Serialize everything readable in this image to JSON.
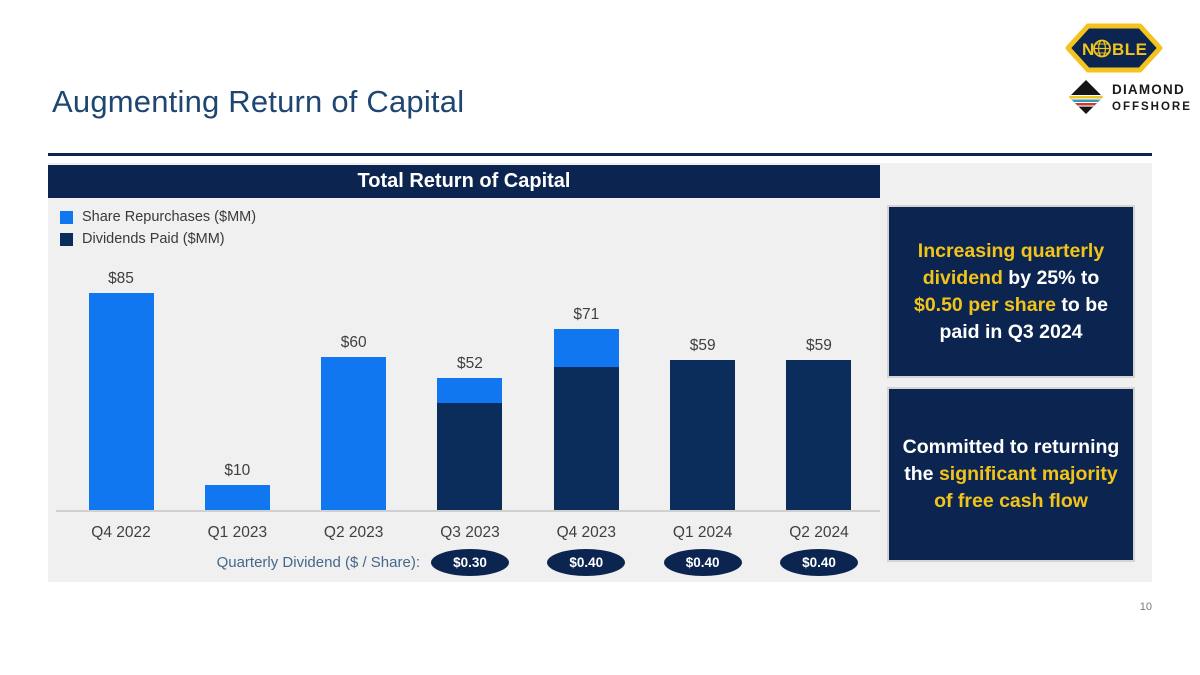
{
  "slide": {
    "title": "Augmenting Return of Capital",
    "page_number": "10"
  },
  "logos": {
    "noble_n": "N",
    "noble_ble": "BLE",
    "diamond_line1": "DIAMOND",
    "diamond_line2": "OFFSHORE"
  },
  "chart": {
    "header": "Total Return of Capital",
    "legend": [
      {
        "label": "Share Repurchases ($MM)",
        "color": "#1177F0"
      },
      {
        "label": "Dividends Paid ($MM)",
        "color": "#0B2D5B"
      }
    ],
    "dividend_row_label": "Quarterly Dividend ($ / Share):"
  },
  "chart_data": {
    "type": "bar",
    "stacked": true,
    "title": "Total Return of Capital",
    "categories": [
      "Q4 2022",
      "Q1 2023",
      "Q2 2023",
      "Q3 2023",
      "Q4 2023",
      "Q1 2024",
      "Q2 2024"
    ],
    "series": [
      {
        "name": "Dividends Paid ($MM)",
        "color": "#0B2D5B",
        "values": [
          0,
          0,
          0,
          42,
          56,
          59,
          59
        ]
      },
      {
        "name": "Share Repurchases ($MM)",
        "color": "#1177F0",
        "values": [
          85,
          10,
          60,
          10,
          15,
          0,
          0
        ]
      }
    ],
    "totals": [
      85,
      10,
      60,
      52,
      71,
      59,
      59
    ],
    "total_labels": [
      "$85",
      "$10",
      "$60",
      "$52",
      "$71",
      "$59",
      "$59"
    ],
    "dividends_per_share": [
      "",
      "",
      "",
      "$0.30",
      "$0.40",
      "$0.40",
      "$0.40"
    ],
    "xlabel": "",
    "ylabel": "",
    "ylim": [
      0,
      95
    ],
    "grid": false,
    "legend_position": "top-left"
  },
  "callouts": [
    {
      "segments": [
        {
          "text": "Increasing quarterly dividend ",
          "highlight": true
        },
        {
          "text": "by 25% to ",
          "highlight": false
        },
        {
          "text": "$0.50 per share",
          "highlight": true
        },
        {
          "text": " to be paid in Q3 2024",
          "highlight": false
        }
      ]
    },
    {
      "segments": [
        {
          "text": "Committed to returning the ",
          "highlight": false
        },
        {
          "text": "significant majority of free cash flow",
          "highlight": true
        }
      ]
    }
  ],
  "colors": {
    "accent_yellow": "#F2C319",
    "navy": "#0B2550",
    "bar_blue": "#1177F0",
    "bar_navy": "#0B2D5B",
    "panel_gray": "#F0F0F0",
    "title_blue": "#1F4670",
    "axis_gray": "#d0d0d0"
  }
}
